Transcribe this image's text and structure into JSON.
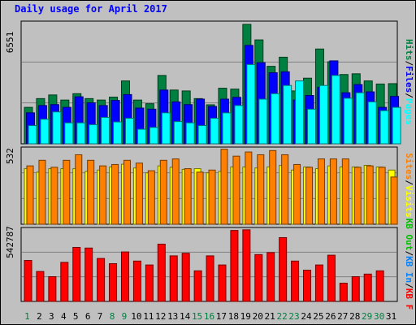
{
  "title": "Daily usage for April 2017",
  "colors": {
    "pages": "#00ffff",
    "files": "#0000ff",
    "hits": "#008040",
    "visits": "#ffff00",
    "sites": "#ff8000",
    "kbf": "#ff0000",
    "kbin": "#0080ff",
    "kbout": "#00c000",
    "separator": "#000000",
    "axis_day": "#000000",
    "axis_weekend": "#008040"
  },
  "chart_data": [
    {
      "type": "bar",
      "panel": "hits",
      "ymax_label": "6551",
      "ylim": [
        0,
        6551
      ],
      "legend": [
        {
          "key": "pages",
          "label": "Pages",
          "color": "#00ffff"
        },
        {
          "key": "sep1",
          "label": "/",
          "color": "#000000"
        },
        {
          "key": "files",
          "label": "Files",
          "color": "#0000ff"
        },
        {
          "key": "sep2",
          "label": "/",
          "color": "#000000"
        },
        {
          "key": "hits",
          "label": "Hits",
          "color": "#008040"
        }
      ],
      "series": [
        {
          "key": "hits",
          "color": "#008040",
          "values": [
            2000,
            2480,
            2680,
            2400,
            2750,
            2480,
            2400,
            2560,
            3450,
            2400,
            2200,
            3750,
            2950,
            2900,
            2480,
            2140,
            3050,
            3000,
            6551,
            5700,
            4250,
            4750,
            2900,
            3600,
            5200,
            4500,
            3800,
            3840,
            3450,
            3280,
            3300
          ]
        },
        {
          "key": "files",
          "color": "#0000ff",
          "values": [
            1700,
            2100,
            2150,
            2000,
            2580,
            2250,
            2100,
            2380,
            2700,
            1960,
            1900,
            2950,
            2300,
            2150,
            2450,
            2050,
            2450,
            2550,
            5400,
            4450,
            3900,
            3950,
            2400,
            2650,
            3100,
            4550,
            2800,
            3250,
            2850,
            2000,
            2600
          ]
        },
        {
          "key": "pages",
          "color": "#00ffff",
          "values": [
            1000,
            1350,
            1750,
            1150,
            1150,
            1050,
            1450,
            1200,
            1400,
            800,
            900,
            1700,
            1220,
            1150,
            1000,
            1400,
            1700,
            2100,
            4350,
            2450,
            2750,
            3200,
            3450,
            1900,
            3200,
            3750,
            2500,
            2800,
            2300,
            1820,
            2000
          ]
        }
      ]
    },
    {
      "type": "bar",
      "panel": "visits",
      "ymax_label": "532",
      "ylim": [
        0,
        532
      ],
      "legend": [
        {
          "key": "visits",
          "label": "Visits",
          "color": "#ffff00"
        },
        {
          "key": "sep1",
          "label": "/",
          "color": "#000000"
        },
        {
          "key": "sites",
          "label": "Sites",
          "color": "#ff8000"
        }
      ],
      "series": [
        {
          "key": "visits",
          "color": "#ffff00",
          "values": [
            400,
            375,
            400,
            400,
            400,
            380,
            390,
            412,
            432,
            405,
            370,
            420,
            410,
            395,
            400,
            370,
            380,
            412,
            412,
            405,
            412,
            423,
            390,
            412,
            400,
            420,
            412,
            412,
            424,
            412,
            390
          ]
        },
        {
          "key": "sites",
          "color": "#ff8000",
          "values": [
            420,
            460,
            410,
            460,
            500,
            460,
            420,
            430,
            460,
            440,
            385,
            460,
            470,
            400,
            375,
            390,
            540,
            490,
            520,
            500,
            530,
            500,
            430,
            410,
            470,
            470,
            470,
            410,
            420,
            410,
            340
          ]
        }
      ]
    },
    {
      "type": "bar",
      "panel": "kb",
      "ymax_label": "542787",
      "ylim": [
        0,
        542787
      ],
      "legend": [
        {
          "key": "kbf",
          "label": "KB F",
          "color": "#ff0000"
        },
        {
          "key": "sep1",
          "label": "/",
          "color": "#000000"
        },
        {
          "key": "kbin",
          "label": "KB In",
          "color": "#0080ff"
        },
        {
          "key": "sep2",
          "label": "/",
          "color": "#000000"
        },
        {
          "key": "kbout",
          "label": "KB Out",
          "color": "#00c000"
        }
      ],
      "series": [
        {
          "key": "kbf",
          "color": "#ff0000",
          "values": [
            315000,
            230000,
            190000,
            300000,
            415000,
            410000,
            330000,
            290000,
            380000,
            310000,
            280000,
            440000,
            350000,
            370000,
            235000,
            350000,
            280000,
            545000,
            550000,
            360000,
            375000,
            490000,
            310000,
            240000,
            280000,
            355000,
            140000,
            190000,
            210000,
            235000,
            0
          ]
        }
      ]
    }
  ],
  "x_axis": {
    "labels": [
      "1",
      "2",
      "3",
      "4",
      "5",
      "6",
      "7",
      "8",
      "9",
      "10",
      "11",
      "12",
      "13",
      "14",
      "15",
      "16",
      "17",
      "18",
      "19",
      "20",
      "21",
      "22",
      "23",
      "24",
      "25",
      "26",
      "27",
      "28",
      "29",
      "30",
      "31"
    ],
    "weekend_days": [
      1,
      8,
      9,
      15,
      16,
      22,
      23,
      29,
      30
    ]
  }
}
